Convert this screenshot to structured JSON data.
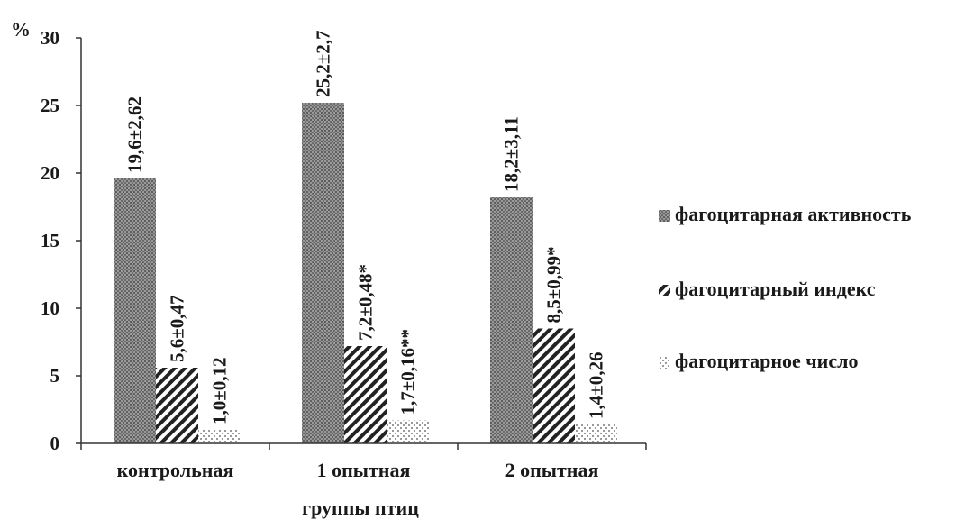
{
  "chart_data": {
    "type": "bar",
    "ylabel": "%",
    "xlabel": "группы птиц",
    "ylim": [
      0,
      30
    ],
    "yticks": [
      "0",
      "5",
      "10",
      "15",
      "20",
      "25",
      "30"
    ],
    "categories": [
      "контрольная",
      "1 опытная",
      "2 опытная"
    ],
    "legend_position": "right",
    "grid": false,
    "series": [
      {
        "name": "фагоцитарная активность",
        "values": [
          19.6,
          25.2,
          18.2
        ],
        "labels": [
          "19,6±2,62",
          "25,2±2,7",
          "18,2±3,11"
        ],
        "pattern": "dots-dense",
        "color": "#8c8c8c"
      },
      {
        "name": "фагоцитарный индекс",
        "values": [
          5.6,
          7.2,
          8.5
        ],
        "labels": [
          "5,6±0,47",
          "7,2±0,48*",
          "8,5±0,99*"
        ],
        "pattern": "diagonal-stripes",
        "color": "#2a2a2a"
      },
      {
        "name": "фагоцитарное число",
        "values": [
          1.0,
          1.7,
          1.4
        ],
        "labels": [
          "1,0±0,12",
          "1,7±0,16**",
          "1,4±0,26"
        ],
        "pattern": "dots-sparse",
        "color": "#bdbdbd"
      }
    ]
  }
}
